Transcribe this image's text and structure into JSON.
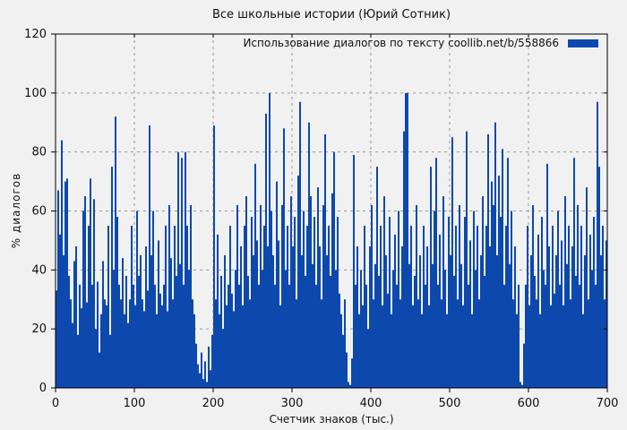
{
  "chart_data": {
    "type": "bar",
    "title": "Все школьные истории (Юрий Сотник)",
    "legend": "Использование диалогов по тексту  coollib.net/b/558866",
    "xlabel": "Счетчик знаков (тыс.)",
    "ylabel": "% диалогов",
    "xlim": [
      0,
      700
    ],
    "ylim": [
      0,
      120
    ],
    "x_ticks": [
      0,
      100,
      200,
      300,
      400,
      500,
      600,
      700
    ],
    "y_ticks": [
      0,
      20,
      40,
      60,
      80,
      100,
      120
    ],
    "grid": true,
    "legend_position": "top-right-inside",
    "bar_color": "#0d49ad",
    "background_color": "#f1f1f1",
    "grid_color": "#999999",
    "x_step_thousand_chars": 2.273,
    "values": [
      33,
      67,
      52,
      84,
      45,
      70,
      71,
      38,
      30,
      22,
      43,
      48,
      18,
      35,
      27,
      60,
      65,
      29,
      55,
      71,
      35,
      64,
      20,
      36,
      12,
      25,
      43,
      30,
      28,
      55,
      18,
      75,
      40,
      92,
      58,
      35,
      30,
      44,
      25,
      38,
      22,
      30,
      55,
      35,
      28,
      60,
      38,
      45,
      30,
      26,
      48,
      33,
      89,
      45,
      60,
      35,
      25,
      50,
      32,
      28,
      35,
      55,
      26,
      62,
      44,
      30,
      55,
      38,
      80,
      42,
      78,
      35,
      80,
      55,
      40,
      62,
      30,
      25,
      15,
      8,
      5,
      12,
      3,
      9,
      2,
      14,
      6,
      18,
      89,
      30,
      52,
      25,
      38,
      20,
      45,
      28,
      35,
      55,
      32,
      26,
      40,
      62,
      35,
      48,
      28,
      55,
      65,
      38,
      30,
      58,
      45,
      76,
      50,
      35,
      62,
      40,
      55,
      93,
      48,
      100,
      60,
      45,
      35,
      70,
      50,
      28,
      62,
      88,
      40,
      55,
      35,
      65,
      48,
      58,
      30,
      72,
      97,
      45,
      60,
      38,
      55,
      90,
      65,
      42,
      58,
      35,
      68,
      48,
      30,
      62,
      86,
      45,
      55,
      38,
      66,
      80,
      40,
      58,
      32,
      25,
      18,
      30,
      12,
      2,
      1,
      10,
      79,
      35,
      48,
      25,
      40,
      28,
      55,
      35,
      20,
      48,
      62,
      30,
      42,
      75,
      38,
      55,
      28,
      65,
      45,
      32,
      58,
      25,
      40,
      52,
      35,
      60,
      30,
      48,
      87,
      100,
      100,
      42,
      55,
      28,
      38,
      62,
      30,
      45,
      25,
      55,
      35,
      48,
      28,
      75,
      42,
      60,
      78,
      35,
      52,
      30,
      65,
      40,
      25,
      58,
      45,
      85,
      38,
      55,
      30,
      62,
      42,
      28,
      58,
      87,
      35,
      50,
      25,
      60,
      40,
      55,
      30,
      45,
      65,
      38,
      55,
      86,
      48,
      70,
      62,
      90,
      45,
      72,
      58,
      81,
      35,
      55,
      78,
      42,
      60,
      30,
      48,
      25,
      35,
      2,
      1,
      15,
      35,
      55,
      28,
      45,
      62,
      38,
      30,
      52,
      25,
      58,
      40,
      35,
      76,
      48,
      28,
      55,
      32,
      45,
      60,
      35,
      50,
      28,
      65,
      42,
      55,
      30,
      48,
      78,
      38,
      62,
      35,
      55,
      25,
      45,
      68,
      30,
      52,
      40,
      58,
      35,
      97,
      75,
      45,
      55,
      30,
      50
    ]
  }
}
